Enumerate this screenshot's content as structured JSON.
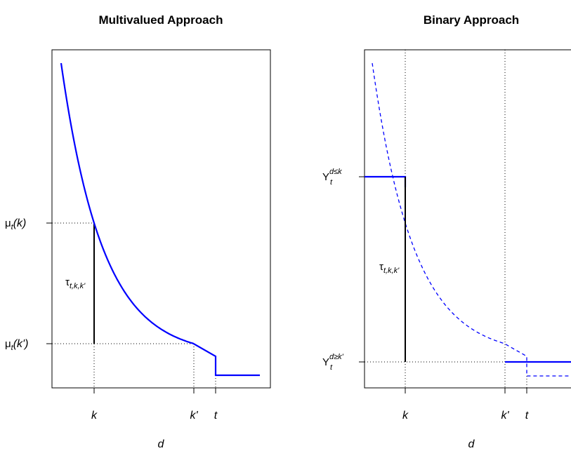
{
  "chart_data": [
    {
      "type": "line",
      "title": "Multivalued Approach",
      "xlabel": "d",
      "ylabel": "",
      "x_ticks": [
        "k",
        "k'",
        "t"
      ],
      "y_tick_labels": {
        "mu_k_main": "μ",
        "mu_k_sub": "t",
        "mu_k_arg": "(k)",
        "mu_kp_main": "μ",
        "mu_kp_sub": "t",
        "mu_kp_arg": "(k')"
      },
      "annotation": {
        "main": "τ",
        "sub": "t,k,k'"
      },
      "series": [
        {
          "kind": "dose_response_curve",
          "color": "#0000ff",
          "style": "solid"
        }
      ]
    },
    {
      "type": "line",
      "title": "Binary Approach",
      "xlabel": "d",
      "ylabel": "",
      "x_ticks": [
        "k",
        "k'",
        "t"
      ],
      "y_tick_labels": {
        "y_le_main": "Y",
        "y_le_sub": "t",
        "y_le_sup": "d≤k",
        "y_ge_main": "Y",
        "y_ge_sub": "t",
        "y_ge_sup": "d≥k'"
      },
      "annotation": {
        "main": "τ",
        "sub": "t,k,k'"
      },
      "series": [
        {
          "kind": "dose_response_curve",
          "color": "#0000ff",
          "style": "dashed"
        },
        {
          "kind": "binary_step",
          "color": "#0000ff",
          "style": "solid"
        }
      ]
    }
  ]
}
